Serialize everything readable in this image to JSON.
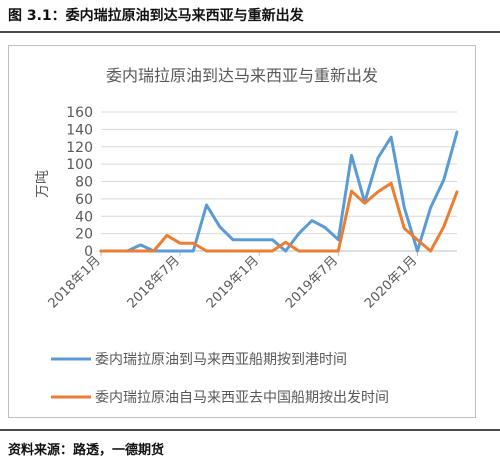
{
  "figure_title": "图 3.1：委内瑞拉原油到达马来西亚与重新出发",
  "source_note": "资料来源：路透，一德期货",
  "colors": {
    "series1": "#5b9bd5",
    "series2": "#ed7d31",
    "grid": "#d9d9d9",
    "axis_text": "#595959"
  },
  "chart_data": {
    "type": "line",
    "title": "委内瑞拉原油到达马来西亚与重新出发",
    "ylabel": "万吨",
    "xlabel": "",
    "ylim": [
      0,
      160
    ],
    "yticks": [
      0,
      20,
      40,
      60,
      80,
      100,
      120,
      140,
      160
    ],
    "grid": true,
    "legend_position": "bottom",
    "x": [
      "2018年1月",
      "2018年2月",
      "2018年3月",
      "2018年4月",
      "2018年5月",
      "2018年6月",
      "2018年7月",
      "2018年8月",
      "2018年9月",
      "2018年10月",
      "2018年11月",
      "2018年12月",
      "2019年1月",
      "2019年2月",
      "2019年3月",
      "2019年4月",
      "2019年5月",
      "2019年6月",
      "2019年7月",
      "2019年8月",
      "2019年9月",
      "2019年10月",
      "2019年11月",
      "2019年12月",
      "2020年1月",
      "2020年2月",
      "2020年3月",
      "2020年4月"
    ],
    "xtick_labels": [
      "2018年1月",
      "2018年7月",
      "2019年1月",
      "2019年7月",
      "2020年1月"
    ],
    "series": [
      {
        "name": "委内瑞拉原油到马来西亚船期按到港时间",
        "values": [
          0,
          0,
          0,
          7,
          0,
          0,
          0,
          0,
          53,
          28,
          13,
          13,
          13,
          13,
          0,
          20,
          35,
          27,
          13,
          110,
          56,
          107,
          131,
          50,
          0,
          50,
          82,
          137
        ]
      },
      {
        "name": "委内瑞拉原油自马来西亚去中国船期按出发时间",
        "values": [
          0,
          0,
          0,
          0,
          0,
          18,
          9,
          9,
          0,
          0,
          0,
          0,
          0,
          0,
          10,
          0,
          0,
          0,
          0,
          69,
          55,
          68,
          78,
          26,
          13,
          0,
          28,
          68
        ]
      }
    ]
  }
}
